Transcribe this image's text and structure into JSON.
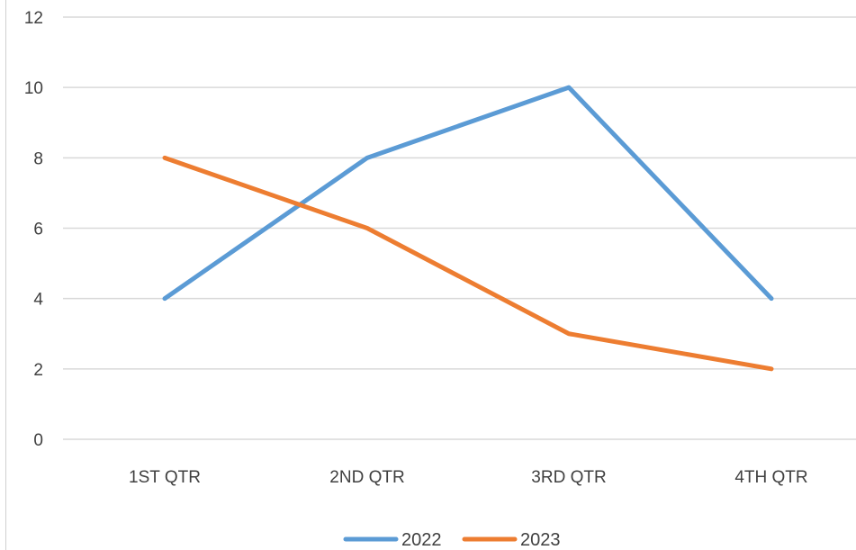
{
  "chart_data": {
    "type": "line",
    "categories": [
      "1ST QTR",
      "2ND QTR",
      "3RD QTR",
      "4TH QTR"
    ],
    "series": [
      {
        "name": "2022",
        "values": [
          4,
          8,
          10,
          4
        ],
        "color": "#5b9bd5"
      },
      {
        "name": "2023",
        "values": [
          8,
          6,
          3,
          2
        ],
        "color": "#ed7d31"
      }
    ],
    "y_ticks": [
      "0",
      "2",
      "4",
      "6",
      "8",
      "10",
      "12"
    ],
    "ylim": [
      0,
      12
    ],
    "grid": true,
    "legend_position": "bottom"
  }
}
